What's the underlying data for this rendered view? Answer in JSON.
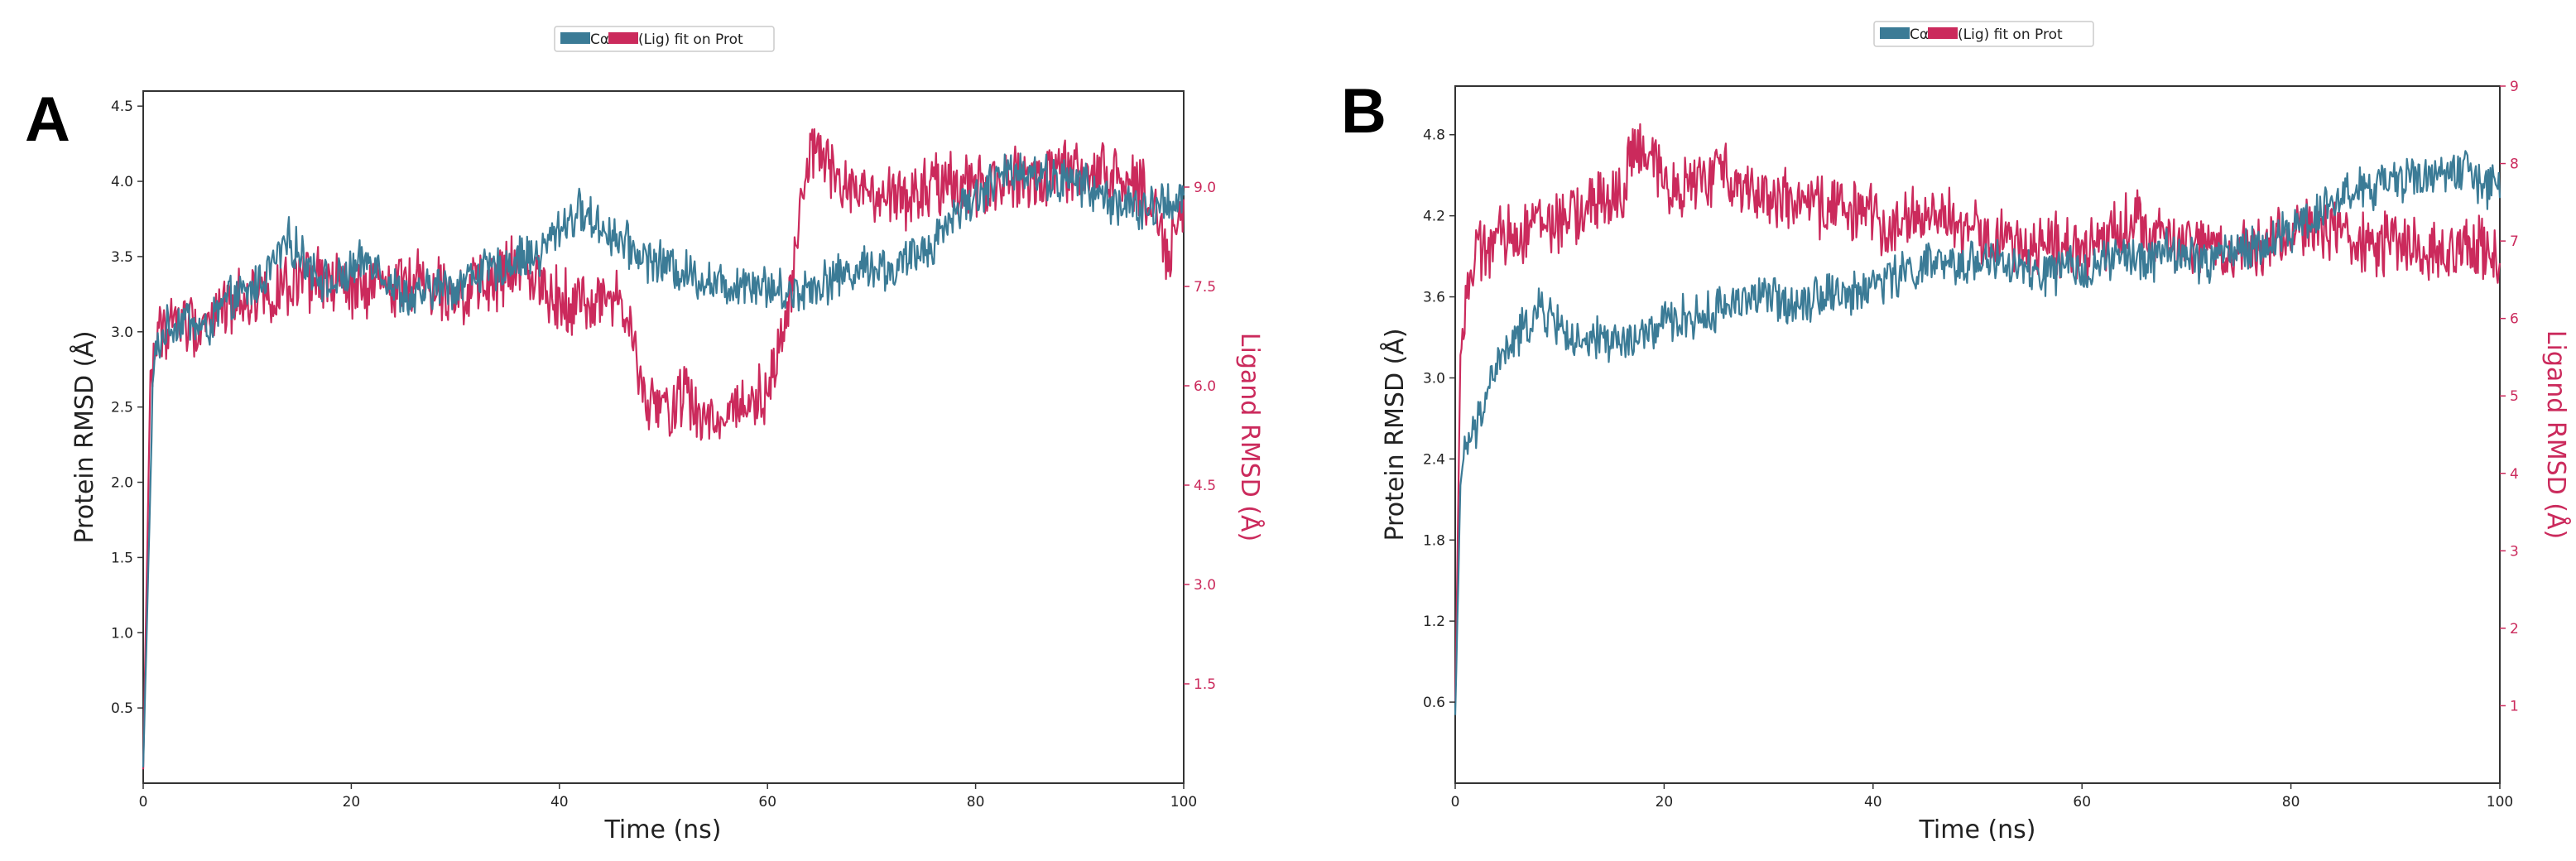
{
  "chart_data": [
    {
      "type": "line",
      "panel_label": "A",
      "legend": {
        "entries": [
          "Cα",
          "(Lig) fit on Prot"
        ],
        "text": "Cα(Lig) fit on Prot",
        "placement": "top-center"
      },
      "xlabel": "Time (ns)",
      "ylabel_left": "Protein RMSD (Å)",
      "ylabel_right": "Ligand RMSD (Å)",
      "xlim": [
        0,
        100
      ],
      "ylim_left": [
        0,
        4.6
      ],
      "ylim_right": [
        0,
        10.45
      ],
      "xticks": [
        0,
        20,
        40,
        60,
        80,
        100
      ],
      "yticks_left": [
        "0.5",
        "1.0",
        "1.5",
        "2.0",
        "2.5",
        "3.0",
        "3.5",
        "4.0",
        "4.5"
      ],
      "yticks_right": [
        "1.5",
        "3.0",
        "4.5",
        "6.0",
        "7.5",
        "9.0"
      ],
      "colors": {
        "protein": "#3b7b96",
        "ligand": "#cb2a5c"
      },
      "series": [
        {
          "name": "Cα",
          "axis": "left",
          "x": [
            0,
            1,
            2,
            4,
            6,
            8,
            10,
            12,
            14,
            16,
            18,
            20,
            22,
            24,
            26,
            28,
            30,
            32,
            34,
            36,
            38,
            40,
            42,
            44,
            46,
            48,
            50,
            52,
            54,
            56,
            58,
            60,
            62,
            64,
            66,
            68,
            70,
            72,
            74,
            76,
            78,
            80,
            82,
            84,
            86,
            88,
            90,
            92,
            94,
            96,
            98,
            100
          ],
          "values": [
            0.1,
            2.8,
            3.0,
            3.1,
            3.0,
            3.2,
            3.25,
            3.4,
            3.6,
            3.45,
            3.3,
            3.4,
            3.5,
            3.3,
            3.2,
            3.3,
            3.3,
            3.4,
            3.4,
            3.5,
            3.5,
            3.7,
            3.8,
            3.7,
            3.6,
            3.5,
            3.45,
            3.4,
            3.35,
            3.3,
            3.35,
            3.3,
            3.25,
            3.3,
            3.35,
            3.4,
            3.45,
            3.4,
            3.5,
            3.6,
            3.8,
            3.9,
            4.0,
            4.1,
            4.05,
            4.0,
            4.0,
            3.9,
            3.85,
            3.8,
            3.85,
            3.9
          ]
        },
        {
          "name": "(Lig) fit on Prot",
          "axis": "right",
          "x": [
            0,
            0.7,
            1.5,
            3,
            5,
            7,
            9,
            11,
            13,
            15,
            17,
            19,
            21,
            23,
            25,
            27,
            29,
            31,
            33,
            35,
            37,
            39,
            41,
            43,
            45,
            47,
            48,
            50,
            52,
            54,
            56,
            58,
            60,
            62,
            63,
            64,
            65,
            67,
            70,
            73,
            76,
            80,
            84,
            88,
            92,
            95,
            97,
            98.5,
            100
          ],
          "values": [
            0.2,
            6.2,
            6.8,
            7.0,
            6.9,
            7.1,
            7.3,
            7.4,
            7.4,
            7.5,
            7.6,
            7.5,
            7.4,
            7.5,
            7.6,
            7.6,
            7.5,
            7.4,
            7.5,
            7.7,
            7.8,
            7.4,
            7.3,
            7.2,
            7.4,
            6.8,
            5.8,
            5.6,
            5.9,
            5.4,
            5.6,
            5.8,
            5.9,
            7.2,
            8.5,
            9.4,
            9.6,
            9.0,
            8.8,
            8.8,
            9.0,
            9.0,
            9.1,
            9.2,
            9.2,
            9.1,
            8.8,
            8.0,
            8.7
          ]
        }
      ]
    },
    {
      "type": "line",
      "panel_label": "B",
      "legend": {
        "entries": [
          "Cα",
          "(Lig) fit on Prot"
        ],
        "text": "Cα(Lig) fit on Prot",
        "placement": "top-center"
      },
      "xlabel": "Time (ns)",
      "ylabel_left": "Protein RMSD (Å)",
      "ylabel_right": "Ligand RMSD (Å)",
      "xlim": [
        0,
        100
      ],
      "ylim_left": [
        0,
        5.16
      ],
      "ylim_right": [
        0,
        9
      ],
      "xticks": [
        0,
        20,
        40,
        60,
        80,
        100
      ],
      "yticks_left": [
        "0.6",
        "1.2",
        "1.8",
        "2.4",
        "3.0",
        "3.6",
        "4.2",
        "4.8"
      ],
      "yticks_right": [
        "1",
        "2",
        "3",
        "4",
        "5",
        "6",
        "7",
        "8",
        "9"
      ],
      "colors": {
        "protein": "#3b7b96",
        "ligand": "#cb2a5c"
      },
      "series": [
        {
          "name": "Cα",
          "axis": "left",
          "x": [
            0,
            0.5,
            1,
            2,
            3,
            4,
            5,
            6,
            8,
            10,
            12,
            14,
            16,
            18,
            20,
            22,
            24,
            26,
            28,
            30,
            32,
            34,
            36,
            38,
            40,
            42,
            44,
            46,
            48,
            50,
            52,
            54,
            56,
            58,
            60,
            62,
            64,
            66,
            68,
            70,
            72,
            74,
            76,
            78,
            80,
            82,
            84,
            86,
            88,
            90,
            92,
            94,
            96,
            98,
            100
          ],
          "values": [
            0.5,
            2.2,
            2.5,
            2.6,
            2.9,
            3.1,
            3.2,
            3.3,
            3.5,
            3.4,
            3.2,
            3.3,
            3.25,
            3.3,
            3.4,
            3.45,
            3.45,
            3.55,
            3.6,
            3.6,
            3.55,
            3.6,
            3.65,
            3.6,
            3.7,
            3.75,
            3.8,
            3.85,
            3.8,
            3.9,
            3.85,
            3.8,
            3.75,
            3.8,
            3.8,
            3.85,
            3.9,
            3.85,
            3.95,
            3.9,
            3.85,
            3.95,
            3.95,
            4.0,
            4.1,
            4.2,
            4.3,
            4.4,
            4.4,
            4.45,
            4.5,
            4.5,
            4.55,
            4.45,
            4.4
          ]
        },
        {
          "name": "(Lig) fit on Prot",
          "axis": "right",
          "x": [
            0,
            0.5,
            1,
            2,
            4,
            6,
            8,
            10,
            12,
            14,
            16,
            17,
            18,
            20,
            22,
            24,
            26,
            28,
            30,
            32,
            34,
            36,
            38,
            40,
            42,
            44,
            46,
            48,
            50,
            52,
            54,
            56,
            58,
            60,
            62,
            64,
            66,
            68,
            70,
            72,
            74,
            76,
            78,
            80,
            82,
            84,
            86,
            88,
            90,
            92,
            94,
            96,
            98,
            100
          ],
          "values": [
            1.0,
            5.5,
            6.3,
            6.8,
            7.0,
            7.1,
            7.3,
            7.2,
            7.4,
            7.5,
            7.6,
            8.2,
            8.1,
            7.8,
            7.7,
            7.8,
            7.9,
            7.7,
            7.6,
            7.5,
            7.4,
            7.5,
            7.4,
            7.3,
            7.2,
            7.3,
            7.4,
            7.2,
            7.1,
            7.0,
            6.9,
            7.0,
            6.9,
            6.8,
            7.0,
            7.3,
            7.2,
            7.0,
            6.9,
            7.0,
            6.8,
            6.9,
            7.0,
            7.1,
            7.2,
            7.1,
            7.0,
            6.9,
            7.0,
            6.9,
            6.8,
            7.0,
            6.9,
            6.8
          ]
        }
      ]
    }
  ]
}
